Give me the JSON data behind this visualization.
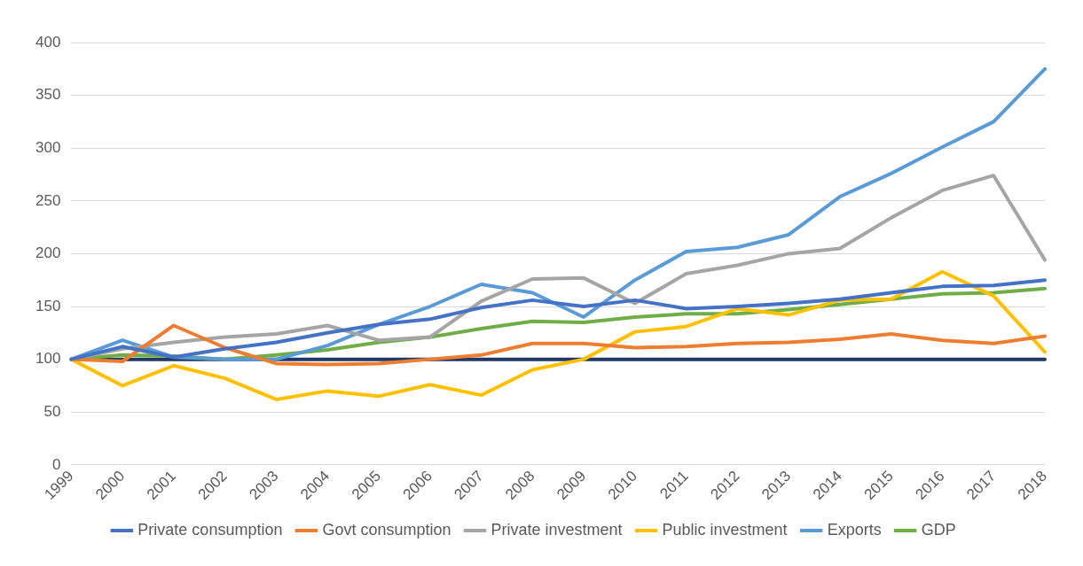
{
  "chart_data": {
    "type": "line",
    "categories": [
      "1999",
      "2000",
      "2001",
      "2002",
      "2003",
      "2004",
      "2005",
      "2006",
      "2007",
      "2008",
      "2009",
      "2010",
      "2011",
      "2012",
      "2013",
      "2014",
      "2015",
      "2016",
      "2017",
      "2018"
    ],
    "series": [
      {
        "name": "Private consumption",
        "color": "#4472c4",
        "values": [
          100,
          112,
          102,
          110,
          116,
          125,
          133,
          138,
          149,
          156,
          150,
          156,
          148,
          150,
          153,
          157,
          163,
          169,
          170,
          175
        ]
      },
      {
        "name": "Govt consumption",
        "color": "#ed7d31",
        "values": [
          100,
          98,
          132,
          111,
          96,
          95,
          96,
          100,
          104,
          115,
          115,
          111,
          112,
          115,
          116,
          119,
          124,
          118,
          115,
          122
        ]
      },
      {
        "name": "Private investment",
        "color": "#a5a5a5",
        "values": [
          100,
          110,
          116,
          121,
          124,
          132,
          118,
          121,
          155,
          176,
          177,
          153,
          181,
          189,
          200,
          205,
          234,
          260,
          274,
          194
        ]
      },
      {
        "name": "Public investment",
        "color": "#ffc000",
        "values": [
          100,
          75,
          94,
          82,
          62,
          70,
          65,
          76,
          66,
          90,
          100,
          126,
          131,
          148,
          142,
          156,
          157,
          183,
          160,
          107
        ]
      },
      {
        "name": "Exports",
        "color": "#5b9bd5",
        "values": [
          100,
          118,
          102,
          100,
          100,
          113,
          133,
          150,
          171,
          163,
          140,
          175,
          202,
          206,
          218,
          254,
          276,
          301,
          325,
          375
        ]
      },
      {
        "name": "GDP",
        "color": "#70ad47",
        "values": [
          100,
          104,
          103,
          100,
          104,
          109,
          116,
          121,
          129,
          136,
          135,
          140,
          143,
          143,
          147,
          152,
          157,
          162,
          163,
          167
        ]
      },
      {
        "color": "#203864",
        "values": [
          100,
          100,
          100,
          100,
          100,
          100,
          100,
          100,
          100,
          100,
          100,
          100,
          100,
          100,
          100,
          100,
          100,
          100,
          100,
          100
        ]
      }
    ],
    "ylim": [
      0,
      400
    ],
    "yticks": [
      0,
      50,
      100,
      150,
      200,
      250,
      300,
      350,
      400
    ],
    "grid": "y",
    "legend": "bottom",
    "marker": "none",
    "line_style": "solid"
  }
}
